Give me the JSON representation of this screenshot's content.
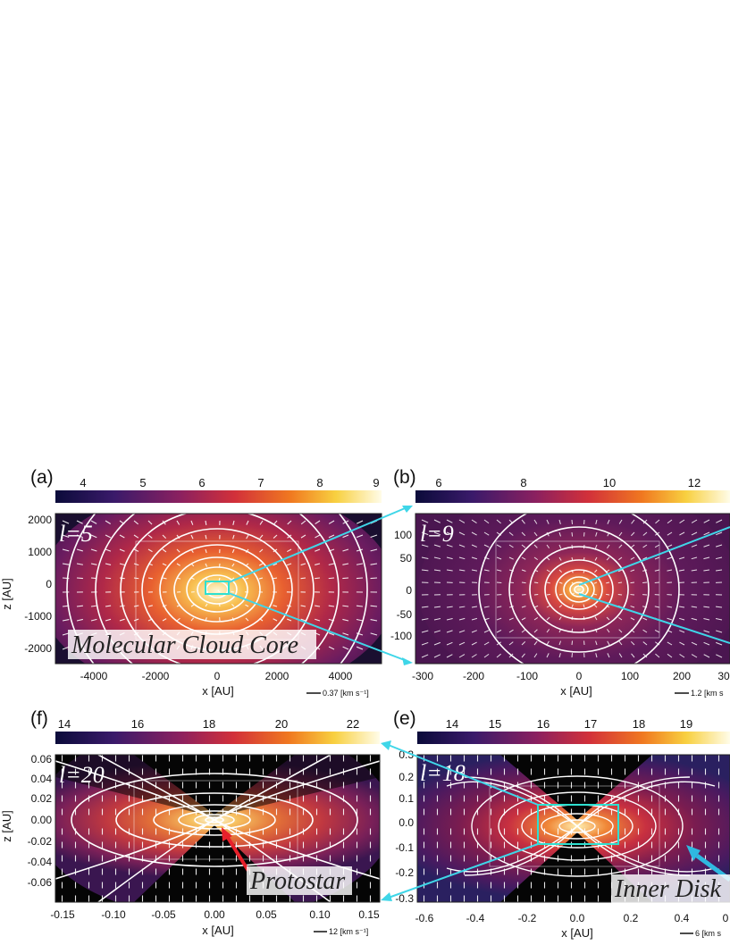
{
  "figure": {
    "panels": [
      {
        "id": "a",
        "letter": "(a)",
        "step_label": "l=5",
        "colorbar_ticks": [
          "4",
          "5",
          "6",
          "7",
          "8",
          "9"
        ],
        "x_ticks": [
          "-4000",
          "-2000",
          "0",
          "2000",
          "4000"
        ],
        "y_ticks": [
          "2000",
          "1000",
          "0",
          "-1000",
          "-2000"
        ],
        "x_label": "x [AU]",
        "y_label": "z [AU]",
        "velocity_scale": "0.37 [km s⁻¹]",
        "callout": "Molecular Cloud Core"
      },
      {
        "id": "b",
        "letter": "(b)",
        "step_label": "l=9",
        "colorbar_ticks": [
          "6",
          "8",
          "10",
          "12"
        ],
        "x_ticks": [
          "-300",
          "-200",
          "-100",
          "0",
          "100",
          "200",
          "30"
        ],
        "y_ticks": [
          "100",
          "50",
          "0",
          "-50",
          "-100"
        ],
        "x_label": "x [AU]",
        "velocity_scale": "1.2 [km s"
      },
      {
        "id": "f",
        "letter": "(f)",
        "step_label": "l=20",
        "colorbar_ticks": [
          "14",
          "16",
          "18",
          "20",
          "22"
        ],
        "x_ticks": [
          "-0.15",
          "-0.10",
          "-0.05",
          "0.00",
          "0.05",
          "0.10",
          "0.15"
        ],
        "y_ticks": [
          "0.06",
          "0.04",
          "0.02",
          "0.00",
          "-0.02",
          "-0.04",
          "-0.06"
        ],
        "x_label": "x [AU]",
        "y_label": "z [AU]",
        "velocity_scale": "12 [km s⁻¹]",
        "callout": "Protostar"
      },
      {
        "id": "e",
        "letter": "(e)",
        "step_label": "l=18",
        "colorbar_ticks": [
          "14",
          "15",
          "16",
          "17",
          "18",
          "19"
        ],
        "x_ticks": [
          "-0.6",
          "-0.4",
          "-0.2",
          "0.0",
          "0.2",
          "0.4",
          "0"
        ],
        "y_ticks": [
          "0.3",
          "0.2",
          "0.1",
          "0.0",
          "-0.1",
          "-0.2",
          "-0.3"
        ],
        "x_label": "x [AU]",
        "velocity_scale": "6 [km s",
        "callout": "Inner Disk"
      }
    ],
    "colors": {
      "zoom_arrow": "#3fd6e8",
      "zoom_box": "#2ee0d0",
      "protostar_arrow": "#e8202a",
      "inner_disk_arrow": "#2fb8e0"
    }
  }
}
